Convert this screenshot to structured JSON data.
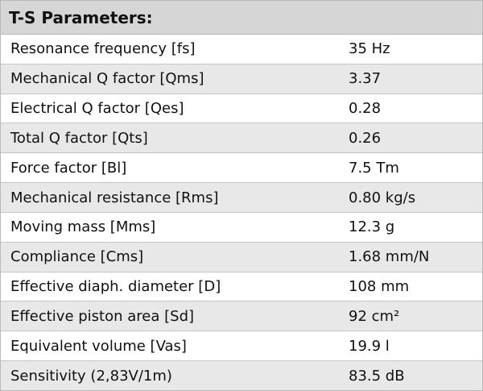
{
  "table": {
    "title": "T-S Parameters:",
    "rows": [
      [
        "Resonance frequency [fs]",
        "35 Hz"
      ],
      [
        "Mechanical Q factor [Qms]",
        "3.37"
      ],
      [
        "Electrical Q factor [Qes]",
        "0.28"
      ],
      [
        "Total Q factor [Qts]",
        "0.26"
      ],
      [
        "Force factor [Bl]",
        "7.5 Tm"
      ],
      [
        "Mechanical resistance [Rms]",
        "0.80 kg/s"
      ],
      [
        "Moving mass [Mms]",
        "12.3 g"
      ],
      [
        "Compliance [Cms]",
        "1.68 mm/N"
      ],
      [
        "Effective diaph. diameter [D]",
        "108 mm"
      ],
      [
        "Effective piston area [Sd]",
        "92 cm²"
      ],
      [
        "Equivalent volume [Vas]",
        "19.9 l"
      ],
      [
        "Sensitivity (2,83V/1m)",
        "83.5 dB"
      ]
    ]
  }
}
